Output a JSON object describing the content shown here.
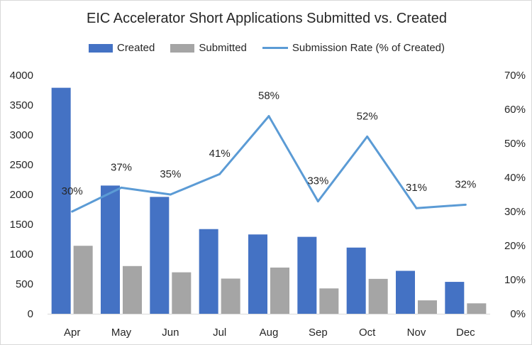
{
  "chart_data": {
    "type": "bar",
    "title": "EIC Accelerator Short Applications Submitted vs. Created",
    "categories": [
      "Apr",
      "May",
      "Jun",
      "Jul",
      "Aug",
      "Sep",
      "Oct",
      "Nov",
      "Dec"
    ],
    "series": [
      {
        "name": "Created",
        "type": "bar",
        "axis": "left",
        "color": "#4472c4",
        "values": [
          3790,
          2150,
          1960,
          1420,
          1330,
          1290,
          1110,
          720,
          535
        ]
      },
      {
        "name": "Submitted",
        "type": "bar",
        "axis": "left",
        "color": "#a5a5a5",
        "values": [
          1140,
          800,
          695,
          590,
          775,
          425,
          585,
          225,
          175
        ]
      },
      {
        "name": "Submission Rate (% of Created)",
        "type": "line",
        "axis": "right",
        "color": "#5b9bd5",
        "values": [
          30,
          37,
          35,
          41,
          58,
          33,
          52,
          31,
          32
        ],
        "labels": [
          "30%",
          "37%",
          "35%",
          "41%",
          "58%",
          "33%",
          "52%",
          "31%",
          "32%"
        ]
      }
    ],
    "y_left": {
      "min": 0,
      "max": 4000,
      "ticks": [
        "0",
        "500",
        "1000",
        "1500",
        "2000",
        "2500",
        "3000",
        "3500",
        "4000"
      ]
    },
    "y_right": {
      "min": 0,
      "max": 70,
      "ticks": [
        "0%",
        "10%",
        "20%",
        "30%",
        "40%",
        "50%",
        "60%",
        "70%"
      ]
    },
    "grid": false,
    "legend": "top-center"
  }
}
